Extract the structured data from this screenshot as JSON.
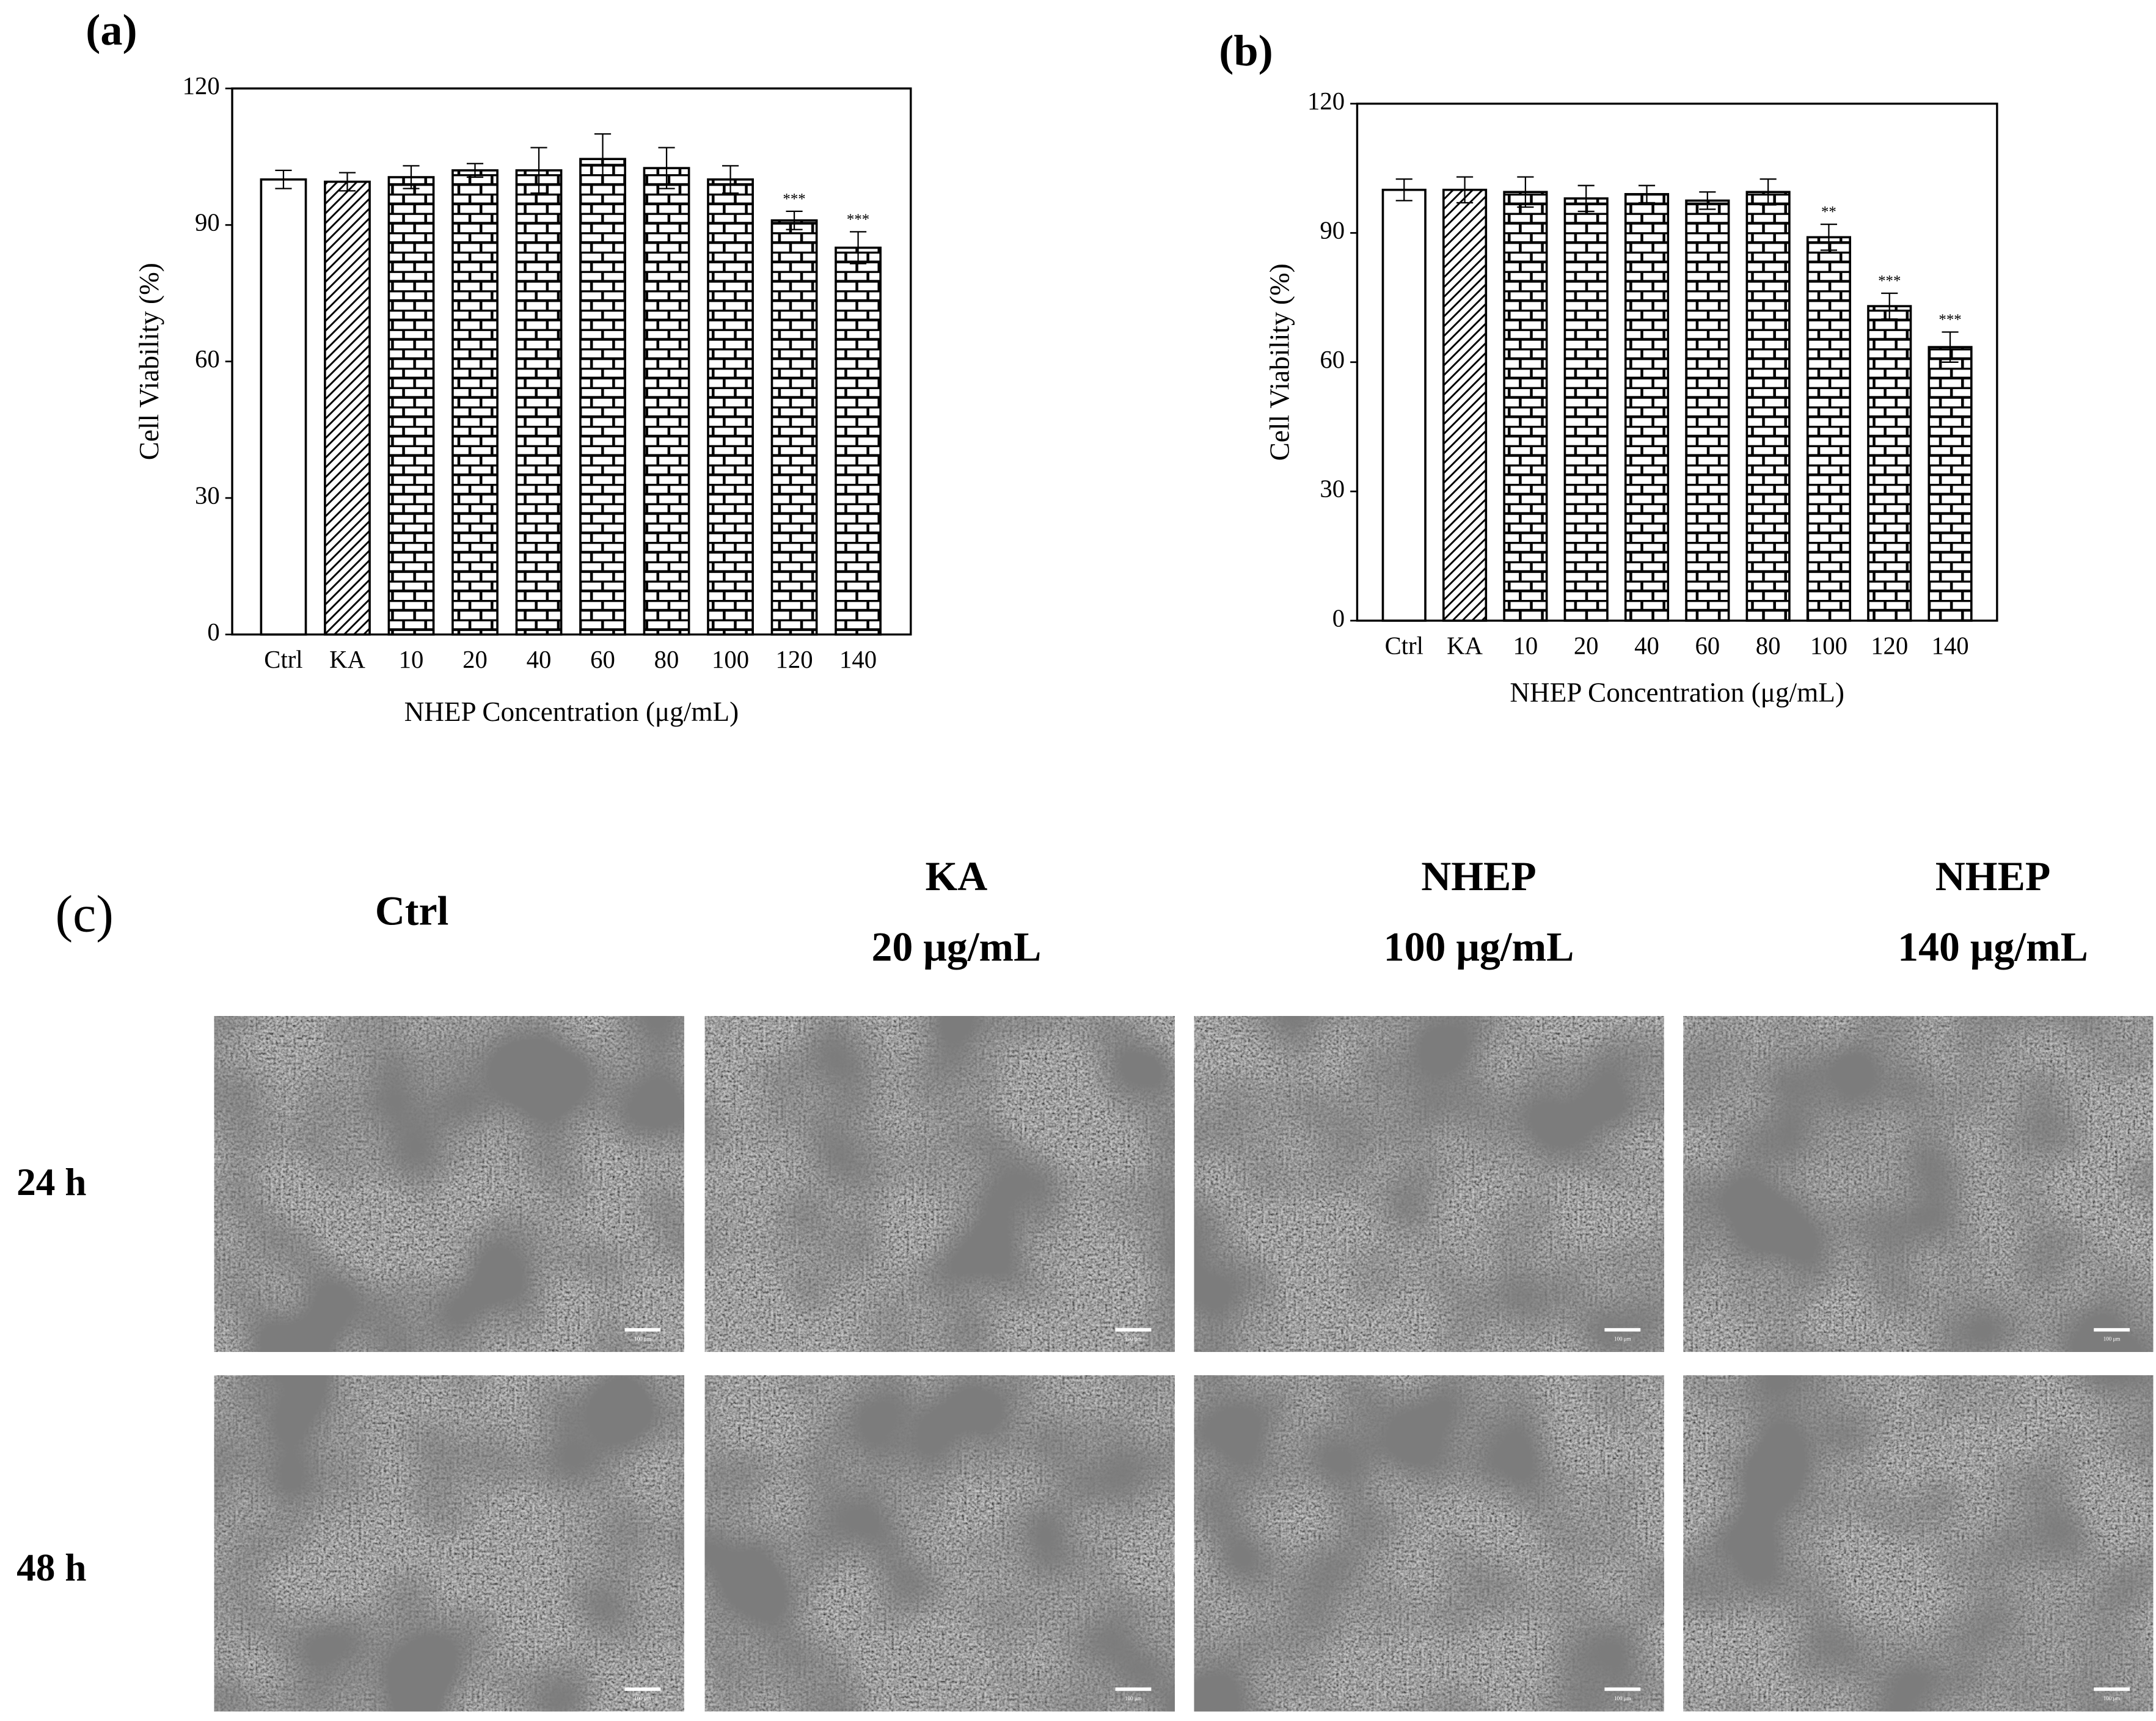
{
  "chart_data": [
    {
      "type": "bar",
      "panel_label": "(a)",
      "x_label": "NHEP Concentration (μg/mL)",
      "y_label": "Cell Viability (%)",
      "categories": [
        "Ctrl",
        "KA",
        "10",
        "20",
        "40",
        "60",
        "80",
        "100",
        "120",
        "140"
      ],
      "values": [
        100,
        99.5,
        100.5,
        102,
        102,
        104.5,
        102.5,
        100,
        91,
        85
      ],
      "errors": [
        2,
        2,
        2.5,
        1.5,
        5,
        5.5,
        4.5,
        3,
        2,
        3.5
      ],
      "significance": [
        null,
        null,
        null,
        null,
        null,
        null,
        null,
        null,
        "***",
        "***"
      ],
      "bar_fills": [
        "white",
        "hatch",
        "brick",
        "brick",
        "brick",
        "brick",
        "brick",
        "brick",
        "brick",
        "brick"
      ],
      "ylim": [
        0,
        120
      ],
      "yticks": [
        0,
        30,
        60,
        90,
        120
      ]
    },
    {
      "type": "bar",
      "panel_label": "(b)",
      "x_label": "NHEP Concentration (μg/mL)",
      "y_label": "Cell Viability (%)",
      "categories": [
        "Ctrl",
        "KA",
        "10",
        "20",
        "40",
        "60",
        "80",
        "100",
        "120",
        "140"
      ],
      "values": [
        100,
        100,
        99.5,
        98,
        99,
        97.5,
        99.5,
        89,
        73,
        63.5
      ],
      "errors": [
        2.5,
        3,
        3.5,
        3,
        2,
        2,
        3,
        3,
        3,
        3.5
      ],
      "significance": [
        null,
        null,
        null,
        null,
        null,
        null,
        null,
        "**",
        "***",
        "***"
      ],
      "bar_fills": [
        "white",
        "hatch",
        "brick",
        "brick",
        "brick",
        "brick",
        "brick",
        "brick",
        "brick",
        "brick"
      ],
      "ylim": [
        0,
        120
      ],
      "yticks": [
        0,
        30,
        60,
        90,
        120
      ]
    }
  ],
  "panel_c": {
    "label": "(c)",
    "columns": [
      [
        "Ctrl"
      ],
      [
        "KA",
        "20 μg/mL"
      ],
      [
        "NHEP",
        "100 μg/mL"
      ],
      [
        "NHEP",
        "140 μg/mL"
      ]
    ],
    "rows": [
      "24 h",
      "48 h"
    ],
    "scale_bar": "100 μm"
  }
}
